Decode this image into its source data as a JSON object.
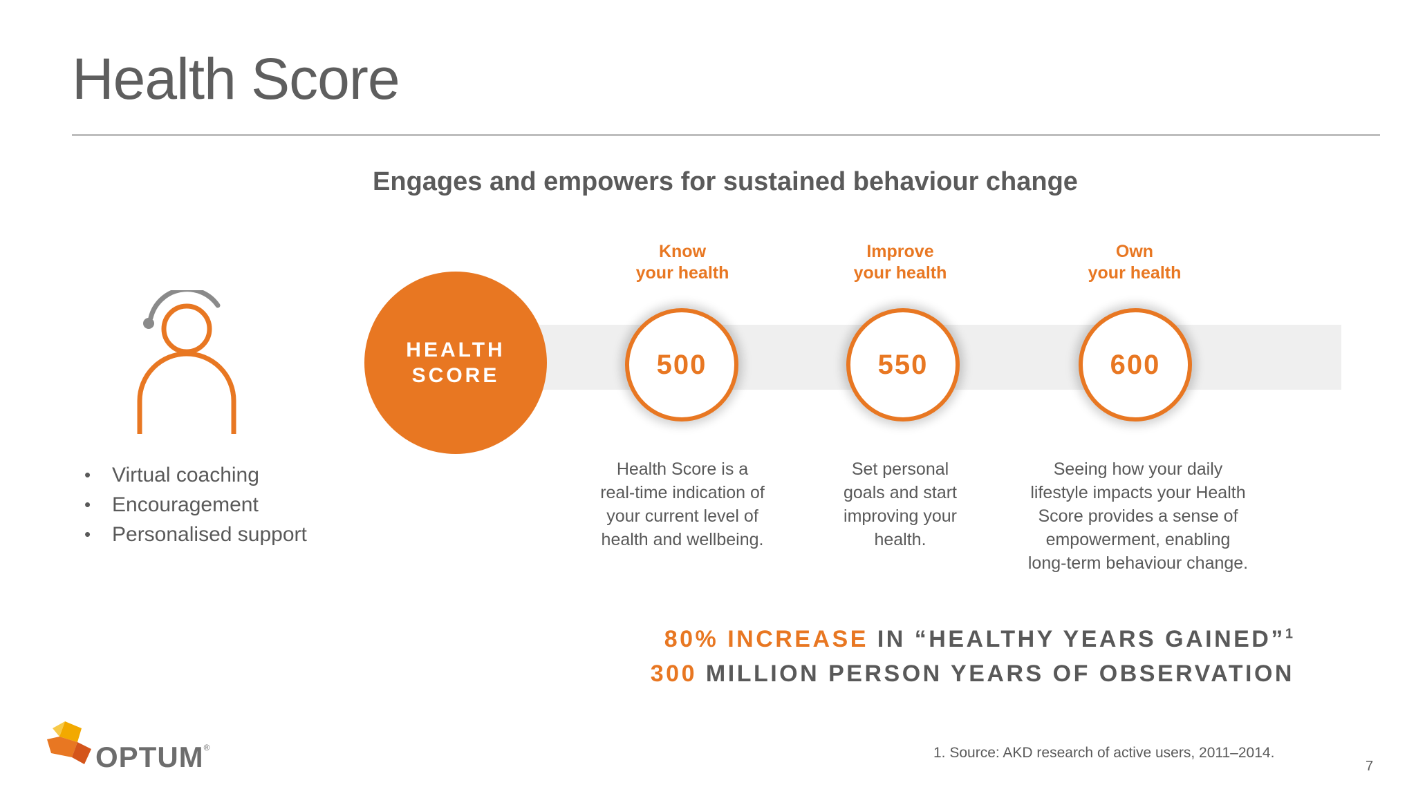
{
  "slide": {
    "title": "Health Score",
    "subtitle": "Engages and empowers for sustained behaviour change",
    "page_number": "7"
  },
  "coach": {
    "icon": "coach-person-headset-icon",
    "bullets": [
      "Virtual coaching",
      "Encouragement",
      "Personalised support"
    ]
  },
  "health_score": {
    "line1": "HEALTH",
    "line2": "SCORE"
  },
  "stages": [
    {
      "head1": "Know",
      "head2": "your health",
      "score": "500",
      "desc": [
        "Health Score is a",
        "real-time indication of",
        "your current level of",
        "health and wellbeing."
      ]
    },
    {
      "head1": "Improve",
      "head2": "your health",
      "score": "550",
      "desc": [
        "Set personal",
        "goals and start",
        "improving your",
        "health."
      ]
    },
    {
      "head1": "Own",
      "head2": "your health",
      "score": "600",
      "desc": [
        "Seeing how your daily",
        "lifestyle impacts your Health",
        "Score provides a sense of",
        "empowerment, enabling",
        "long-term behaviour change."
      ]
    }
  ],
  "stats": {
    "line1_highlight": "80% INCREASE",
    "line1_rest": " IN “HEALTHY YEARS GAINED”",
    "line1_sup": "1",
    "line2_highlight": "300",
    "line2_rest": " MILLION PERSON YEARS OF OBSERVATION"
  },
  "footnote": "1. Source: AKD research of active users, 2011–2014.",
  "logo": {
    "text": "OPTUM",
    "mark": "®",
    "icon": "optum-logo-icon"
  },
  "colors": {
    "accent": "#e87722",
    "text": "#595959",
    "band": "#efefef"
  }
}
